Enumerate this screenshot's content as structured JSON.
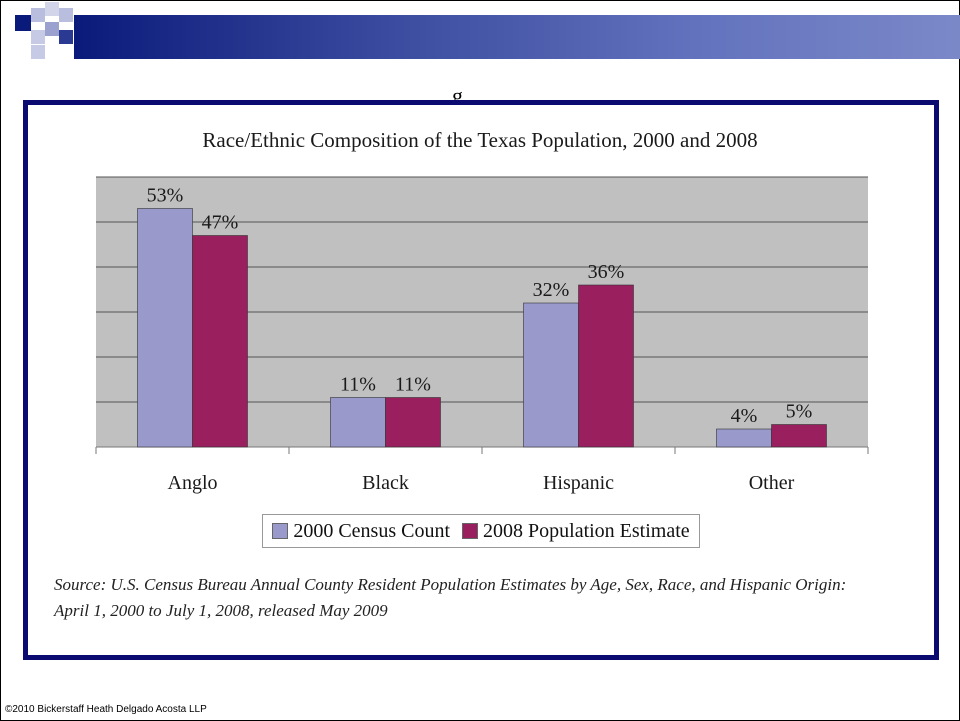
{
  "slide": {
    "footer_text": "©2010 Bickerstaff Heath Delgado Acosta LLP",
    "source_line1": "Source:  U.S. Census Bureau Annual County Resident Population Estimates by Age, Sex, Race, and Hispanic Origin:",
    "source_line2": "April 1, 2000 to July 1, 2008, released May 2009"
  },
  "colors": {
    "header_dark": "#0a1a7a",
    "frame_border": "#0a0a70",
    "plot_bg": "#c0c0c0",
    "series_2000": "#9999cc",
    "series_2008": "#991f5f"
  },
  "chart_data": {
    "type": "bar",
    "title": "Race/Ethnic Composition of the Texas Population, 2000 and 2008",
    "categories": [
      "Anglo",
      "Black",
      "Hispanic",
      "Other"
    ],
    "series": [
      {
        "name": "2000 Census Count",
        "values": [
          53,
          11,
          32,
          4
        ],
        "labels": [
          "53%",
          "11%",
          "32%",
          "4%"
        ]
      },
      {
        "name": "2008 Population Estimate",
        "values": [
          47,
          11,
          36,
          5
        ],
        "labels": [
          "47%",
          "11%",
          "36%",
          "5%"
        ]
      }
    ],
    "ylim": [
      0,
      60
    ],
    "grid": true,
    "legend_position": "bottom"
  }
}
